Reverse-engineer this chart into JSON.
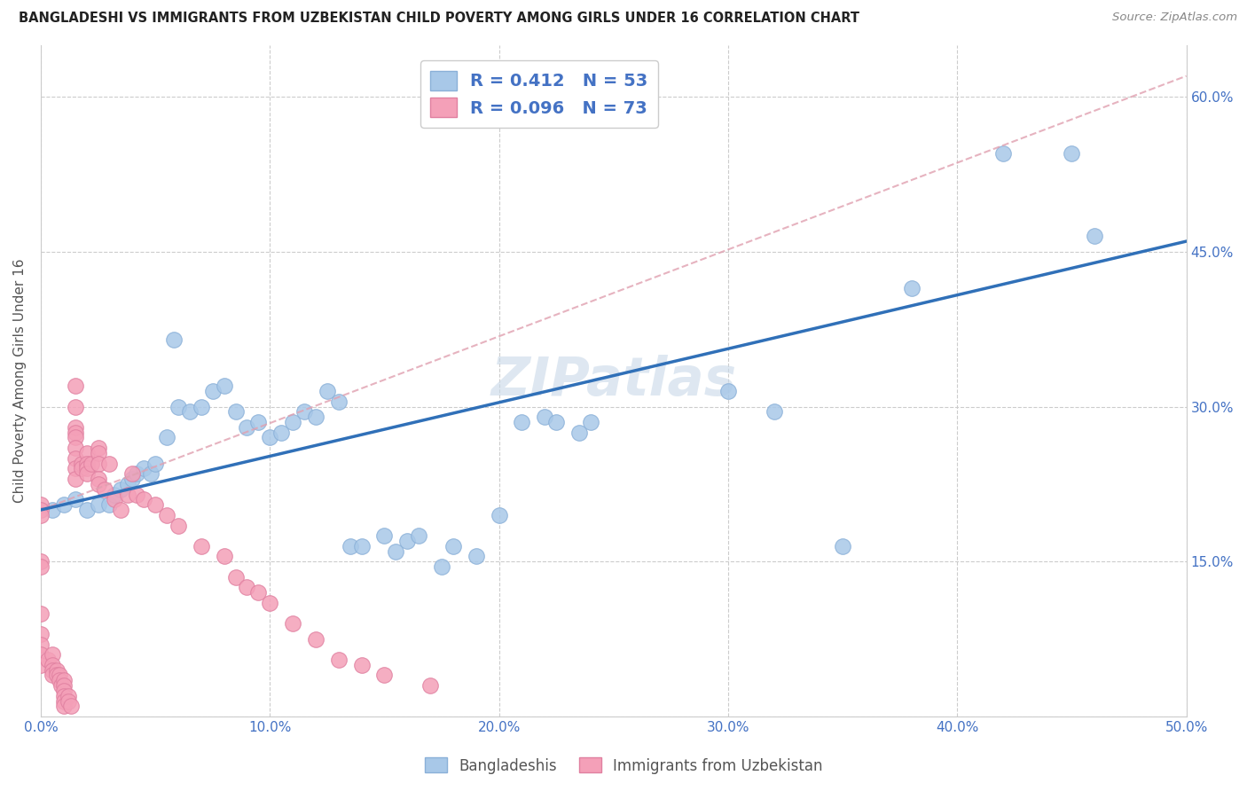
{
  "title": "BANGLADESHI VS IMMIGRANTS FROM UZBEKISTAN CHILD POVERTY AMONG GIRLS UNDER 16 CORRELATION CHART",
  "source": "Source: ZipAtlas.com",
  "ylabel": "Child Poverty Among Girls Under 16",
  "xlim": [
    0.0,
    0.5
  ],
  "ylim": [
    0.0,
    0.65
  ],
  "xticks": [
    0.0,
    0.1,
    0.2,
    0.3,
    0.4,
    0.5
  ],
  "yticks": [
    0.0,
    0.15,
    0.3,
    0.45,
    0.6
  ],
  "xtick_labels": [
    "0.0%",
    "10.0%",
    "20.0%",
    "30.0%",
    "40.0%",
    "50.0%"
  ],
  "ytick_labels_right": [
    "",
    "15.0%",
    "30.0%",
    "45.0%",
    "60.0%"
  ],
  "blue_color": "#a8c8e8",
  "pink_color": "#f4a0b8",
  "blue_line_color": "#3070b8",
  "pink_dash_color": "#e0a0b0",
  "R_blue": 0.412,
  "N_blue": 53,
  "R_pink": 0.096,
  "N_pink": 73,
  "legend_label_blue": "Bangladeshis",
  "legend_label_pink": "Immigrants from Uzbekistan",
  "watermark": "ZIPatlas",
  "blue_line_x0": 0.0,
  "blue_line_y0": 0.2,
  "blue_line_x1": 0.5,
  "blue_line_y1": 0.46,
  "blue_x": [
    0.005,
    0.01,
    0.015,
    0.02,
    0.025,
    0.03,
    0.032,
    0.035,
    0.038,
    0.04,
    0.042,
    0.045,
    0.048,
    0.05,
    0.055,
    0.058,
    0.06,
    0.065,
    0.07,
    0.075,
    0.08,
    0.085,
    0.09,
    0.095,
    0.1,
    0.105,
    0.11,
    0.115,
    0.12,
    0.125,
    0.13,
    0.135,
    0.14,
    0.15,
    0.155,
    0.16,
    0.165,
    0.175,
    0.18,
    0.19,
    0.2,
    0.21,
    0.22,
    0.225,
    0.235,
    0.24,
    0.3,
    0.32,
    0.35,
    0.38,
    0.42,
    0.45,
    0.46
  ],
  "blue_y": [
    0.2,
    0.205,
    0.21,
    0.2,
    0.205,
    0.205,
    0.215,
    0.22,
    0.225,
    0.23,
    0.235,
    0.24,
    0.235,
    0.245,
    0.27,
    0.365,
    0.3,
    0.295,
    0.3,
    0.315,
    0.32,
    0.295,
    0.28,
    0.285,
    0.27,
    0.275,
    0.285,
    0.295,
    0.29,
    0.315,
    0.305,
    0.165,
    0.165,
    0.175,
    0.16,
    0.17,
    0.175,
    0.145,
    0.165,
    0.155,
    0.195,
    0.285,
    0.29,
    0.285,
    0.275,
    0.285,
    0.315,
    0.295,
    0.165,
    0.415,
    0.545,
    0.545,
    0.465
  ],
  "pink_x": [
    0.0,
    0.0,
    0.0,
    0.0,
    0.0,
    0.0,
    0.0,
    0.0,
    0.0,
    0.0,
    0.003,
    0.005,
    0.005,
    0.005,
    0.005,
    0.007,
    0.007,
    0.008,
    0.008,
    0.009,
    0.01,
    0.01,
    0.01,
    0.01,
    0.01,
    0.01,
    0.012,
    0.012,
    0.013,
    0.015,
    0.015,
    0.015,
    0.015,
    0.015,
    0.015,
    0.015,
    0.015,
    0.015,
    0.018,
    0.018,
    0.02,
    0.02,
    0.02,
    0.02,
    0.022,
    0.025,
    0.025,
    0.025,
    0.025,
    0.025,
    0.028,
    0.03,
    0.032,
    0.035,
    0.038,
    0.04,
    0.042,
    0.045,
    0.05,
    0.055,
    0.06,
    0.07,
    0.08,
    0.085,
    0.09,
    0.095,
    0.1,
    0.11,
    0.12,
    0.13,
    0.14,
    0.15,
    0.17
  ],
  "pink_y": [
    0.205,
    0.2,
    0.195,
    0.15,
    0.145,
    0.1,
    0.08,
    0.07,
    0.06,
    0.05,
    0.055,
    0.06,
    0.05,
    0.045,
    0.04,
    0.045,
    0.04,
    0.04,
    0.035,
    0.03,
    0.035,
    0.03,
    0.025,
    0.02,
    0.015,
    0.01,
    0.02,
    0.015,
    0.01,
    0.32,
    0.3,
    0.28,
    0.275,
    0.27,
    0.26,
    0.25,
    0.24,
    0.23,
    0.245,
    0.24,
    0.255,
    0.245,
    0.24,
    0.235,
    0.245,
    0.26,
    0.255,
    0.245,
    0.23,
    0.225,
    0.22,
    0.245,
    0.21,
    0.2,
    0.215,
    0.235,
    0.215,
    0.21,
    0.205,
    0.195,
    0.185,
    0.165,
    0.155,
    0.135,
    0.125,
    0.12,
    0.11,
    0.09,
    0.075,
    0.055,
    0.05,
    0.04,
    0.03
  ]
}
